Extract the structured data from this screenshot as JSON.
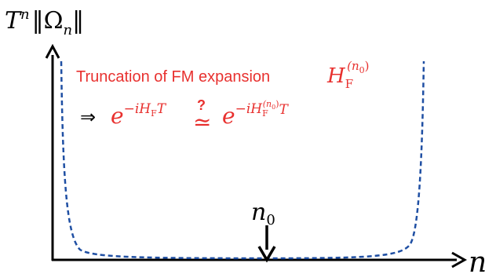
{
  "diagram": {
    "y_axis_label": {
      "base": "T",
      "exponent": "n",
      "norm_open": "‖",
      "symbol": "Ω",
      "subscript": "n",
      "norm_close": "‖"
    },
    "x_axis_label": "n",
    "marker_label": {
      "base": "n",
      "subscript": "0"
    },
    "annotation": {
      "line1_text": "Truncation of FM expansion",
      "line1_math": {
        "base": "H",
        "subscript": "F",
        "superscript": "(n",
        "superscript_sub": "0",
        "superscript_close": ")"
      },
      "implies_arrow": "⇒",
      "lhs": {
        "base": "e",
        "exponent": "−iH",
        "exponent_sub": "F",
        "exponent_tail": "T"
      },
      "relation_mark": "?",
      "relation_symbol": "≃",
      "rhs": {
        "base": "e",
        "exponent": "−iH",
        "exponent_sub": "F",
        "exponent_sup": "(n",
        "exponent_sup_sub": "0",
        "exponent_sup_close": ")",
        "exponent_tail": "T"
      }
    },
    "colors": {
      "curve": "#1f4fa3",
      "annotation": "#e8312f",
      "axes": "#000000"
    }
  }
}
